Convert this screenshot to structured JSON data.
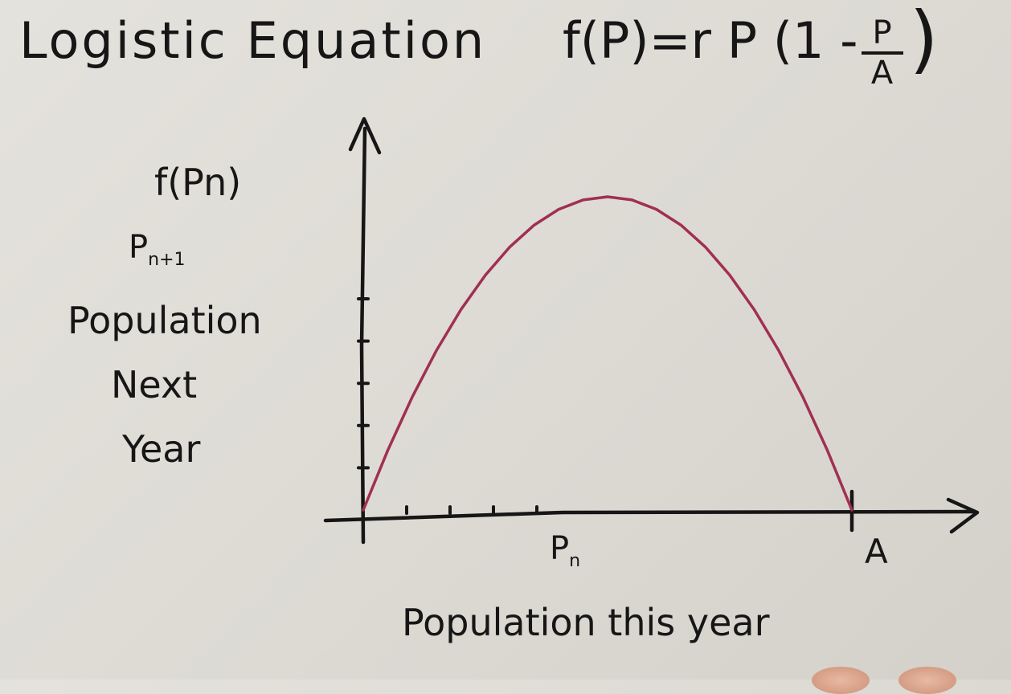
{
  "title": "Logistic Equation",
  "formula": {
    "lhs": "f(P)",
    "equals": "=",
    "rhs_prefix": "r P (1 -",
    "numerator": "P",
    "denominator": "A",
    "close": ")"
  },
  "y_axis_labels": {
    "line1": "f(Pn)",
    "line2_main": "P",
    "line2_sub": "n+1",
    "line3": "Population",
    "line4": "Next",
    "line5": "Year"
  },
  "x_axis_label": "Population this year",
  "x_marker_main": "P",
  "x_marker_sub": "n",
  "x_end_label": "A",
  "colors": {
    "curve": "#a0304f",
    "ink": "#161616"
  },
  "chart_data": {
    "type": "line",
    "title": "Logistic Equation",
    "xlabel": "Population this year",
    "ylabel": "f(Pn) / Pn+1 / Population Next Year",
    "x_ticks_labels": [
      "Pn",
      "A"
    ],
    "xlim": [
      0,
      1
    ],
    "ylim": [
      0,
      1.4
    ],
    "y_axis_tick_count": 5,
    "x_axis_tick_count": 4,
    "series": [
      {
        "x": [
          0,
          0.05,
          0.1,
          0.15,
          0.2,
          0.25,
          0.3,
          0.35,
          0.4,
          0.45,
          0.5,
          0.55,
          0.6,
          0.65,
          0.7,
          0.75,
          0.8,
          0.85,
          0.9,
          0.95,
          1
        ],
        "values": [
          0,
          0.19,
          0.36,
          0.51,
          0.64,
          0.75,
          0.84,
          0.91,
          0.96,
          0.99,
          1.0,
          0.99,
          0.96,
          0.91,
          0.84,
          0.75,
          0.64,
          0.51,
          0.36,
          0.19,
          0
        ]
      }
    ],
    "grid": false,
    "legend": "none"
  }
}
